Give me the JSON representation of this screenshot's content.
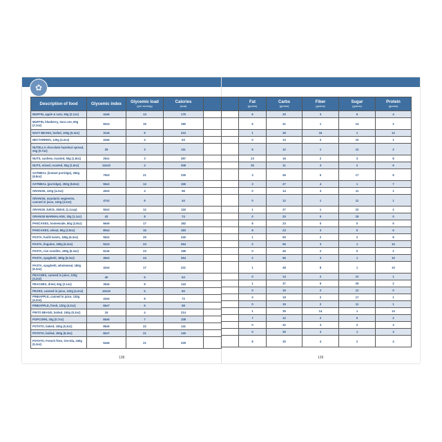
{
  "pages": {
    "left_number": "138",
    "right_number": "139"
  },
  "colors": {
    "header": "#3e6fa0",
    "row_shade": "#dbe3ee",
    "text": "#2f5585"
  },
  "headers": {
    "description": "Description of food",
    "gi": "Glycemic index",
    "gl": "Glycemic load",
    "gl_unit": "(per serving)",
    "calories": "Calories",
    "calories_unit": "(kcal)",
    "fat": "Fat",
    "fat_unit": "(grams)",
    "carbs": "Carbs",
    "carbs_unit": "(grams)",
    "fiber": "Fiber",
    "fiber_unit": "(grams)",
    "sugar": "Sugar",
    "sugar_unit": "(grams)",
    "protein": "Protein",
    "protein_unit": "(grams)"
  },
  "rows": [
    [
      "MUFFIN, apple & oats, 60g (2.1oz)",
      "44±6",
      "13",
      "175",
      "6",
      "20",
      "3",
      "6",
      "4"
    ],
    [
      "MUFFIN, blueberry, Sara Lee, 60g (2.1oz)",
      "50±3",
      "15",
      "180",
      "5",
      "31",
      "1",
      "14",
      "2"
    ],
    [
      "NAVY BEANS, boiled, 150g (5.3oz)",
      "31±6",
      "9",
      "210",
      "1",
      "35",
      "16",
      "1",
      "12"
    ],
    [
      "NECTARINES, 120g (4.2oz)",
      "43±6",
      "4",
      "53",
      "0",
      "13",
      "2",
      "10",
      "1"
    ],
    [
      "NUTELLA chocolate hazelnut spread, 20g (0.7oz)",
      "29",
      "3",
      "111",
      "6",
      "12",
      "1",
      "12",
      "2"
    ],
    [
      "NUTS, cashew, roasted, 50g (1.8oz)",
      "25±1",
      "3",
      "287",
      "23",
      "16",
      "2",
      "3",
      "8"
    ],
    [
      "NUTS, mixed, roasted, 50g (1.8oz)",
      "24±10",
      "4",
      "308",
      "25",
      "11",
      "3",
      "2",
      "6"
    ],
    [
      "OATMEAL (instant porridge), 250g (8.8oz)",
      "79±3",
      "21",
      "226",
      "3",
      "46",
      "5",
      "17",
      "6"
    ],
    [
      "OATMEAL (porridge), 250g (8.8oz)",
      "55±2",
      "13",
      "155",
      "3",
      "27",
      "4",
      "1",
      "7"
    ],
    [
      "ORANGE, 120g (4.2oz)",
      "40±3",
      "4",
      "56",
      "0",
      "14",
      "3",
      "11",
      "1"
    ],
    [
      "ORANGE, mandarin segments, canned in juice, 120g (4.2oz)",
      "47±2",
      "6",
      "44",
      "0",
      "12",
      "1",
      "11",
      "1"
    ],
    [
      "ORANGE JUICE, 250ml, (1.1cup)",
      "50±2",
      "12",
      "118",
      "1",
      "27",
      "1",
      "22",
      "2"
    ],
    [
      "ORANGE MARMALADE, 30g (1.1oz)",
      "43",
      "8",
      "74",
      "0",
      "20",
      "0",
      "18",
      "0"
    ],
    [
      "PANCAKES, homemade, 80g (2.8oz)",
      "66±9",
      "17",
      "182",
      "8",
      "23",
      "0",
      "0",
      "5"
    ],
    [
      "PANCAKES, wheat, 80g (2.8oz)",
      "80±4",
      "16",
      "183",
      "8",
      "23",
      "3",
      "5",
      "6"
    ],
    [
      "PASTA, fusilli twists, 180g (6.3oz)",
      "55±2",
      "25",
      "240",
      "1",
      "50",
      "2",
      "2",
      "8"
    ],
    [
      "PASTA, linguine, 180g (6.3oz)",
      "52±3",
      "23",
      "264",
      "2",
      "56",
      "3",
      "1",
      "10"
    ],
    [
      "PASTA, rice noodles, 180g (6.3oz)",
      "61±6",
      "23",
      "196",
      "0",
      "45",
      "2",
      "0",
      "2"
    ],
    [
      "PASTA, spaghetti, 180g (6.3oz)",
      "49±3",
      "24",
      "264",
      "2",
      "56",
      "3",
      "1",
      "10"
    ],
    [
      "PASTA, spaghetti, wholemeal, 180g (6.3oz)",
      "42±4",
      "17",
      "221",
      "1",
      "48",
      "8",
      "1",
      "10"
    ],
    [
      "PEACHES, canned in juice, 120g (4.2oz)",
      "40",
      "5",
      "53",
      "0",
      "14",
      "2",
      "12",
      "1"
    ],
    [
      "PEACHES, dried, 60g (2.1oz)",
      "35±5",
      "8",
      "143",
      "1",
      "37",
      "5",
      "25",
      "2"
    ],
    [
      "PEARS, canned in juice, 120g (4.2oz)",
      "43±15",
      "5",
      "60",
      "0",
      "16",
      "2",
      "12",
      "0"
    ],
    [
      "PINEAPPLE, canned in juice, 120g (4.2oz)",
      "43±4",
      "8",
      "72",
      "0",
      "19",
      "2",
      "17",
      "1"
    ],
    [
      "PINEAPPLE, fresh, 120g (4.2oz)",
      "66±7",
      "6",
      "58",
      "0",
      "15",
      "2",
      "11",
      "1"
    ],
    [
      "PINTO BEANS, boiled, 150g (5.3oz)",
      "16",
      "4",
      "214",
      "1",
      "35",
      "14",
      "1",
      "14"
    ],
    [
      "POPCORN, 20g (0.7oz)",
      "65±5",
      "7",
      "108",
      "7",
      "12",
      "2",
      "0",
      "2"
    ],
    [
      "POTATO, baked, 150g (5.3oz)",
      "86±6",
      "22",
      "141",
      "0",
      "32",
      "3",
      "2",
      "3"
    ],
    [
      "POTATO, boiled, 150g (5.3oz)",
      "82±7",
      "21",
      "130",
      "0",
      "30",
      "3",
      "1",
      "3"
    ],
    [
      "POTATO, French fries, Ore-Ida, 150g (5.3oz)",
      "64±6",
      "21",
      "229",
      "8",
      "30",
      "4",
      "2",
      "4"
    ]
  ],
  "tall_rows": [
    1,
    4,
    7,
    10,
    19,
    29
  ]
}
